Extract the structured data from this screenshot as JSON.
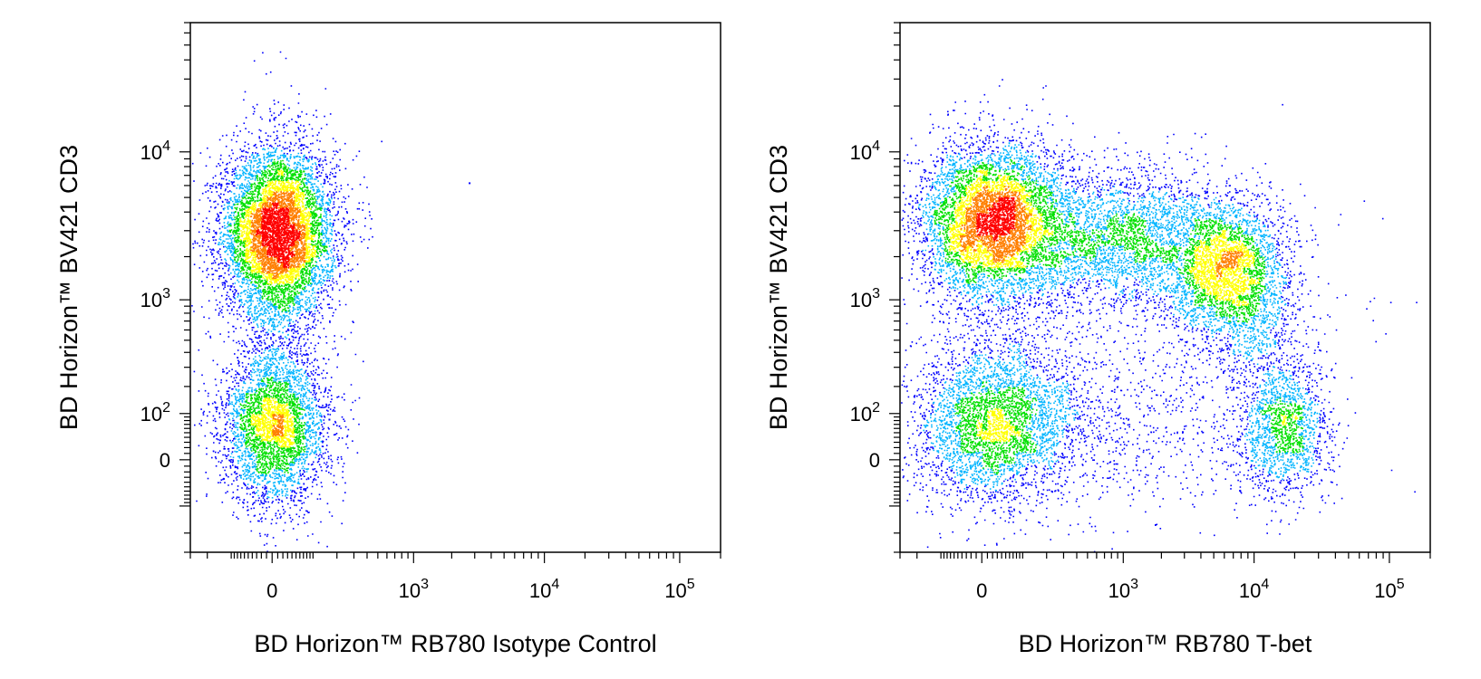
{
  "chart_data": [
    {
      "type": "scatter",
      "style": "pseudocolor density dot plot",
      "xlabel": "BD Horizon™ RB780 Isotype Control",
      "ylabel": "BD Horizon™ BV421 CD3",
      "x_scale": "biexponential",
      "y_scale": "biexponential",
      "xlim": [
        -300,
        200000
      ],
      "ylim": [
        -300,
        70000
      ],
      "x_ticks": [
        {
          "base": "0",
          "exp": "",
          "value": 0
        },
        {
          "base": "10",
          "exp": "3",
          "value": 1000
        },
        {
          "base": "10",
          "exp": "4",
          "value": 10000
        },
        {
          "base": "10",
          "exp": "5",
          "value": 100000
        }
      ],
      "y_ticks": [
        {
          "base": "0",
          "exp": "",
          "value": 0
        },
        {
          "base": "10",
          "exp": "2",
          "value": 100
        },
        {
          "base": "10",
          "exp": "3",
          "value": 1000
        },
        {
          "base": "10",
          "exp": "4",
          "value": 10000
        }
      ],
      "populations": [
        {
          "x": 10,
          "y": 2900,
          "x_spread": 0.42,
          "y_spread": 0.55,
          "events": 7000
        },
        {
          "x": 5,
          "y": 65,
          "x_spread": 0.4,
          "y_spread": 0.5,
          "events": 3600
        },
        {
          "x": 5,
          "y": 900,
          "x_spread": 0.25,
          "y_spread": 1.2,
          "events": 700
        }
      ],
      "outliers": [
        {
          "x": 2700,
          "y": 6300
        },
        {
          "x": 160,
          "y": 85
        }
      ]
    },
    {
      "type": "scatter",
      "style": "pseudocolor density dot plot",
      "xlabel": "BD Horizon™ RB780 T-bet",
      "ylabel": "BD Horizon™ BV421 CD3",
      "x_scale": "biexponential",
      "y_scale": "biexponential",
      "xlim": [
        -300,
        200000
      ],
      "ylim": [
        -300,
        70000
      ],
      "x_ticks": [
        {
          "base": "0",
          "exp": "",
          "value": 0
        },
        {
          "base": "10",
          "exp": "3",
          "value": 1000
        },
        {
          "base": "10",
          "exp": "4",
          "value": 10000
        },
        {
          "base": "10",
          "exp": "5",
          "value": 100000
        }
      ],
      "y_ticks": [
        {
          "base": "0",
          "exp": "",
          "value": 0
        },
        {
          "base": "10",
          "exp": "2",
          "value": 100
        },
        {
          "base": "10",
          "exp": "3",
          "value": 1000
        },
        {
          "base": "10",
          "exp": "4",
          "value": 10000
        }
      ],
      "populations": [
        {
          "x": 20,
          "y": 3500,
          "x_spread": 0.55,
          "y_spread": 0.5,
          "events": 6000
        },
        {
          "x": 900,
          "y": 2700,
          "x_spread": 0.8,
          "y_spread": 0.45,
          "events": 2800
        },
        {
          "x": 5500,
          "y": 1700,
          "x_spread": 0.45,
          "y_spread": 0.45,
          "events": 2800
        },
        {
          "x": 10000,
          "y": 900,
          "x_spread": 0.35,
          "y_spread": 0.55,
          "events": 900
        },
        {
          "x": 25,
          "y": 70,
          "x_spread": 0.6,
          "y_spread": 0.5,
          "events": 3200
        },
        {
          "x": 16000,
          "y": 60,
          "x_spread": 0.35,
          "y_spread": 0.45,
          "events": 1600
        },
        {
          "x": 500,
          "y": 70,
          "x_spread": 1.3,
          "y_spread": 0.55,
          "events": 800
        },
        {
          "x": 30,
          "y": 400,
          "x_spread": 0.6,
          "y_spread": 0.9,
          "events": 600
        },
        {
          "x": 1500,
          "y": 500,
          "x_spread": 1.4,
          "y_spread": 1.0,
          "events": 450
        }
      ],
      "outliers": []
    }
  ],
  "colors": {
    "density_low": "#0000ff",
    "density_mid_low": "#00b4ff",
    "density_mid": "#00e000",
    "density_mid_high": "#ffff00",
    "density_high": "#ff7f00",
    "density_max": "#ff0000",
    "axis": "#000000"
  }
}
